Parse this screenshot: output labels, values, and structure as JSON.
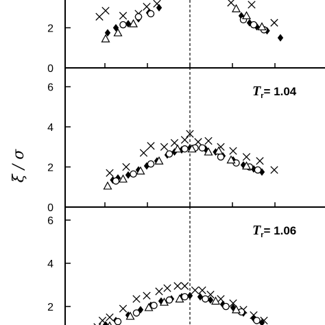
{
  "chart_data": {
    "type": "scatter",
    "ylabel": "ξ / σ",
    "grid": false,
    "ylim": [
      0,
      6.6
    ],
    "yticks": [
      0,
      2,
      4,
      6
    ],
    "panels": [
      {
        "label": "T r = 1.04",
        "label_var": "T",
        "label_sub": "r",
        "label_value": "= 1.04",
        "ylim": [
          0,
          6.6
        ],
        "series": [
          {
            "marker": "cross",
            "points": [
              [
                -0.78,
                1.7
              ],
              [
                -0.62,
                2.0
              ],
              [
                -0.45,
                2.7
              ],
              [
                -0.38,
                3.05
              ],
              [
                -0.25,
                3.0
              ],
              [
                -0.15,
                3.2
              ],
              [
                -0.05,
                3.35
              ],
              [
                0.0,
                3.65
              ],
              [
                0.08,
                3.25
              ],
              [
                0.18,
                3.3
              ],
              [
                0.3,
                3.0
              ],
              [
                0.42,
                2.8
              ],
              [
                0.55,
                2.5
              ],
              [
                0.68,
                2.3
              ],
              [
                0.82,
                1.85
              ]
            ]
          },
          {
            "marker": "diamond",
            "points": [
              [
                -0.75,
                1.35
              ],
              [
                -0.7,
                1.45
              ],
              [
                -0.6,
                1.6
              ],
              [
                -0.5,
                1.85
              ],
              [
                -0.42,
                2.05
              ],
              [
                -0.32,
                2.3
              ],
              [
                -0.22,
                2.6
              ],
              [
                -0.15,
                2.75
              ],
              [
                -0.08,
                2.85
              ],
              [
                0.0,
                2.95
              ],
              [
                0.04,
                2.95
              ],
              [
                0.15,
                2.9
              ],
              [
                0.25,
                2.75
              ],
              [
                0.32,
                2.55
              ],
              [
                0.42,
                2.35
              ],
              [
                0.52,
                2.1
              ],
              [
                0.62,
                1.9
              ],
              [
                0.7,
                1.75
              ]
            ]
          },
          {
            "marker": "circle",
            "points": [
              [
                -0.72,
                1.3
              ],
              [
                -0.55,
                1.65
              ],
              [
                -0.38,
                2.15
              ],
              [
                -0.2,
                2.65
              ],
              [
                -0.05,
                2.9
              ],
              [
                0.05,
                2.95
              ],
              [
                0.12,
                2.95
              ],
              [
                0.3,
                2.5
              ],
              [
                0.45,
                2.2
              ],
              [
                0.58,
                2.0
              ],
              [
                0.66,
                1.85
              ]
            ]
          },
          {
            "marker": "triangle",
            "points": [
              [
                -0.8,
                1.05
              ],
              [
                -0.65,
                1.4
              ],
              [
                -0.48,
                1.8
              ],
              [
                -0.3,
                2.3
              ],
              [
                -0.12,
                2.9
              ],
              [
                0.02,
                2.9
              ],
              [
                0.18,
                2.75
              ],
              [
                0.28,
                2.8
              ],
              [
                0.4,
                2.35
              ],
              [
                0.55,
                2.05
              ]
            ]
          }
        ]
      },
      {
        "label": "T r = 1.06",
        "label_var": "T",
        "label_sub": "r",
        "label_value": "= 1.06",
        "ylim": [
          0,
          6.6
        ],
        "series": [
          {
            "marker": "cross",
            "points": [
              [
                -0.9,
                1.05
              ],
              [
                -0.85,
                1.35
              ],
              [
                -0.78,
                1.5
              ],
              [
                -0.65,
                1.9
              ],
              [
                -0.52,
                2.35
              ],
              [
                -0.42,
                2.5
              ],
              [
                -0.3,
                2.7
              ],
              [
                -0.22,
                2.85
              ],
              [
                -0.12,
                2.95
              ],
              [
                -0.05,
                2.95
              ],
              [
                0.05,
                2.75
              ],
              [
                0.12,
                2.75
              ],
              [
                0.2,
                2.55
              ],
              [
                0.3,
                2.35
              ],
              [
                0.42,
                2.15
              ],
              [
                0.52,
                1.85
              ],
              [
                0.62,
                1.6
              ],
              [
                0.72,
                1.35
              ]
            ]
          },
          {
            "marker": "diamond",
            "points": [
              [
                -0.92,
                0.9
              ],
              [
                -0.82,
                1.15
              ],
              [
                -0.72,
                1.35
              ],
              [
                -0.6,
                1.6
              ],
              [
                -0.48,
                1.85
              ],
              [
                -0.38,
                2.05
              ],
              [
                -0.28,
                2.25
              ],
              [
                -0.18,
                2.35
              ],
              [
                -0.08,
                2.45
              ],
              [
                0.0,
                2.5
              ],
              [
                0.1,
                2.45
              ],
              [
                0.2,
                2.3
              ],
              [
                0.32,
                2.1
              ],
              [
                0.42,
                1.95
              ],
              [
                0.52,
                1.7
              ],
              [
                0.62,
                1.45
              ],
              [
                0.7,
                1.25
              ]
            ]
          },
          {
            "marker": "circle",
            "points": [
              [
                -0.88,
                0.95
              ],
              [
                -0.7,
                1.3
              ],
              [
                -0.52,
                1.7
              ],
              [
                -0.35,
                2.05
              ],
              [
                -0.2,
                2.3
              ],
              [
                -0.05,
                2.45
              ],
              [
                0.15,
                2.35
              ],
              [
                0.35,
                2.0
              ],
              [
                0.5,
                1.75
              ],
              [
                0.65,
                1.35
              ]
            ]
          },
          {
            "marker": "triangle",
            "points": [
              [
                -0.95,
                0.8
              ],
              [
                -0.78,
                1.1
              ],
              [
                -0.58,
                1.55
              ],
              [
                -0.4,
                1.95
              ],
              [
                -0.25,
                2.2
              ],
              [
                -0.1,
                2.35
              ],
              [
                0.25,
                2.25
              ],
              [
                0.45,
                1.85
              ]
            ]
          }
        ]
      }
    ],
    "top_panel_visible_fragment": {
      "series": [
        {
          "marker": "cross",
          "points": [
            [
              -0.88,
              2.55
            ],
            [
              -0.82,
              2.85
            ],
            [
              -0.65,
              2.6
            ],
            [
              -0.5,
              2.7
            ],
            [
              -0.42,
              3.05
            ],
            [
              -0.32,
              3.2
            ],
            [
              0.4,
              3.25
            ],
            [
              0.6,
              3.15
            ],
            [
              0.82,
              2.25
            ]
          ]
        },
        {
          "marker": "diamond",
          "points": [
            [
              -0.8,
              1.75
            ],
            [
              -0.72,
              2.0
            ],
            [
              -0.6,
              2.2
            ],
            [
              -0.5,
              2.45
            ],
            [
              -0.4,
              2.75
            ],
            [
              -0.3,
              3.0
            ],
            [
              0.5,
              2.6
            ],
            [
              0.58,
              2.25
            ],
            [
              0.65,
              2.05
            ],
            [
              0.75,
              1.85
            ],
            [
              0.88,
              1.5
            ]
          ]
        },
        {
          "marker": "circle",
          "points": [
            [
              -0.65,
              2.15
            ],
            [
              -0.5,
              2.55
            ],
            [
              -0.38,
              2.7
            ],
            [
              0.52,
              2.4
            ],
            [
              0.62,
              2.15
            ],
            [
              0.72,
              1.9
            ]
          ]
        },
        {
          "marker": "triangle",
          "points": [
            [
              -0.82,
              1.45
            ],
            [
              -0.7,
              1.75
            ],
            [
              -0.55,
              2.2
            ],
            [
              0.45,
              2.95
            ],
            [
              0.55,
              2.6
            ],
            [
              0.7,
              2.05
            ]
          ]
        }
      ]
    }
  }
}
